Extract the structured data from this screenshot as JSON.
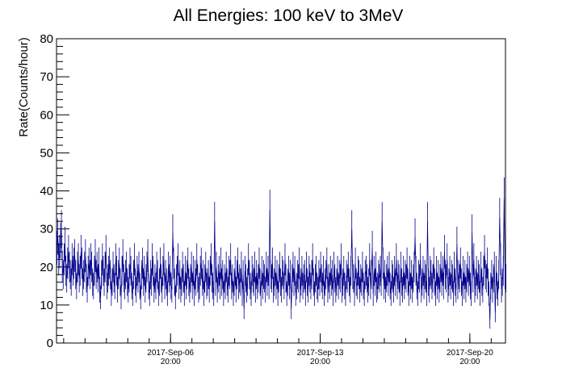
{
  "chart_data": {
    "type": "line",
    "title": "All Energies:  100 keV to 3MeV",
    "xlabel": "",
    "ylabel": "Rate(Counts/hour)",
    "ylim": [
      0,
      80
    ],
    "yticks": [
      0,
      10,
      20,
      30,
      40,
      50,
      60,
      70,
      80
    ],
    "xlim": [
      "2017-Sep-01 12:00",
      "2017-Sep-22 12:00"
    ],
    "xticks": [
      {
        "date": "2017-Sep-06",
        "time": "20:00"
      },
      {
        "date": "2017-Sep-13",
        "time": "20:00"
      },
      {
        "date": "2017-Sep-20",
        "time": "20:00"
      }
    ],
    "grid": false,
    "legend": "none",
    "line_color": "#00008b",
    "error_bars": true,
    "series": [
      {
        "x_unit": "hours after 2017-Sep-01 12:00",
        "x_start": 0,
        "x_step": 1,
        "values": [
          25,
          28,
          22,
          24,
          27,
          30,
          20,
          18,
          22,
          26,
          19,
          17,
          21,
          24,
          20,
          18,
          16,
          22,
          19,
          21,
          23,
          18,
          15,
          20,
          22,
          17,
          19,
          24,
          21,
          16,
          18,
          20,
          23,
          17,
          14,
          19,
          21,
          18,
          22,
          20,
          16,
          15,
          19,
          23,
          18,
          20,
          17,
          21,
          14,
          12,
          18,
          22,
          19,
          16,
          20,
          24,
          15,
          17,
          19,
          21,
          18,
          13,
          16,
          20,
          17,
          15,
          22,
          19,
          14,
          18,
          21,
          16,
          12,
          19,
          23,
          17,
          15,
          18,
          20,
          16,
          14,
          17,
          21,
          19,
          15,
          13,
          18,
          22,
          16,
          14,
          19,
          17,
          20,
          15,
          12,
          18,
          21,
          16,
          19,
          14,
          17,
          20,
          23,
          15,
          13,
          18,
          16,
          22,
          19,
          14,
          17,
          15,
          20,
          18,
          13,
          16,
          21,
          17,
          14,
          19,
          22,
          15,
          18,
          16,
          13,
          20,
          17,
          19,
          15,
          14,
          18,
          21,
          16,
          12,
          17,
          19,
          22,
          15,
          18,
          14,
          16,
          20,
          17,
          13,
          19,
          15,
          18,
          21,
          16,
          14,
          17,
          20,
          15,
          19,
          13,
          18,
          16,
          22,
          17,
          14,
          15,
          19,
          21,
          16,
          18,
          13,
          17,
          20,
          15,
          16,
          18,
          14,
          19,
          22,
          17,
          15,
          13,
          18,
          16,
          20,
          14,
          17,
          19,
          15,
          21,
          16,
          18,
          13,
          17,
          15,
          20,
          16,
          14,
          19,
          18,
          22,
          15,
          17,
          13,
          16,
          19,
          14,
          18,
          21,
          15,
          17,
          16,
          20,
          13,
          18,
          15,
          19,
          17,
          14,
          16,
          22,
          18,
          15,
          13,
          19,
          17,
          16,
          20,
          14,
          18,
          15,
          17,
          21,
          16,
          13,
          19,
          15,
          18,
          17,
          14,
          20,
          16,
          19,
          15,
          12,
          18,
          17,
          21,
          14,
          16,
          19,
          15,
          18,
          13,
          17,
          20,
          16,
          14,
          19,
          18,
          15,
          22,
          17,
          13,
          16,
          19,
          15,
          18,
          14,
          17,
          20,
          16,
          19,
          13,
          15,
          18,
          17,
          21,
          14,
          16,
          19,
          15,
          17,
          18,
          13,
          20,
          16,
          14,
          19,
          17,
          15,
          18,
          22,
          16,
          13,
          17,
          19,
          15,
          14,
          18,
          16,
          20,
          17,
          15,
          19,
          13,
          16,
          18,
          21,
          14,
          17,
          15,
          19,
          16,
          18,
          13,
          20,
          17,
          14,
          16,
          19,
          15,
          18,
          17,
          22,
          14,
          16,
          19,
          15,
          13,
          18,
          17,
          20,
          16,
          14,
          19,
          15,
          18,
          17,
          13,
          21,
          16,
          15,
          19,
          18,
          14,
          17,
          16,
          20,
          15,
          13,
          18,
          19,
          17,
          14,
          16,
          22,
          15,
          18,
          17,
          13,
          19,
          16,
          20,
          14,
          15,
          18,
          17,
          19,
          16,
          13,
          21,
          15,
          18,
          14,
          17,
          19,
          16,
          20,
          15,
          13,
          18,
          17,
          14,
          19,
          16,
          22,
          15,
          18,
          17,
          13,
          20,
          16,
          14,
          19,
          15,
          18,
          17,
          21,
          16,
          13,
          19,
          15,
          18,
          14,
          17,
          20,
          16,
          19,
          15,
          13,
          18,
          17,
          22,
          14,
          16,
          19,
          15,
          18,
          17,
          13,
          20,
          16,
          14,
          19,
          18,
          15,
          17,
          21,
          16,
          13,
          19,
          15,
          18,
          14,
          17,
          20,
          16,
          19,
          15,
          24,
          18,
          17,
          22,
          14,
          16,
          19,
          15,
          18,
          17,
          13,
          20,
          16,
          14,
          19,
          15,
          18,
          17,
          21,
          16,
          13,
          19,
          15,
          18,
          14,
          17,
          20,
          16,
          19,
          15,
          13,
          18,
          17,
          22,
          14,
          16,
          19,
          15,
          18,
          17,
          13,
          20,
          16,
          14,
          19,
          15,
          18,
          17,
          21,
          16,
          13,
          19,
          15,
          18,
          14,
          17,
          20,
          16,
          19,
          15,
          13,
          18,
          17,
          22,
          14,
          16,
          19,
          15,
          18,
          17
        ],
        "highlights": [
          {
            "x": 130,
            "y": 29
          },
          {
            "x": 177,
            "y": 32
          },
          {
            "x": 239,
            "y": 35
          },
          {
            "x": 331,
            "y": 30
          },
          {
            "x": 354,
            "y": 25
          },
          {
            "x": 365,
            "y": 32
          },
          {
            "x": 402,
            "y": 28
          },
          {
            "x": 449,
            "y": 26
          },
          {
            "x": 466,
            "y": 29
          },
          {
            "x": 486,
            "y": 30
          },
          {
            "x": 502,
            "y": 38
          },
          {
            "x": 497,
            "y": 33
          },
          {
            "x": 486,
            "y": 6
          },
          {
            "x": 492,
            "y": 8
          },
          {
            "x": 480,
            "y": 24
          },
          {
            "x": 416,
            "y": 32
          },
          {
            "x": 263,
            "y": 9
          },
          {
            "x": 210,
            "y": 9
          }
        ]
      }
    ]
  }
}
